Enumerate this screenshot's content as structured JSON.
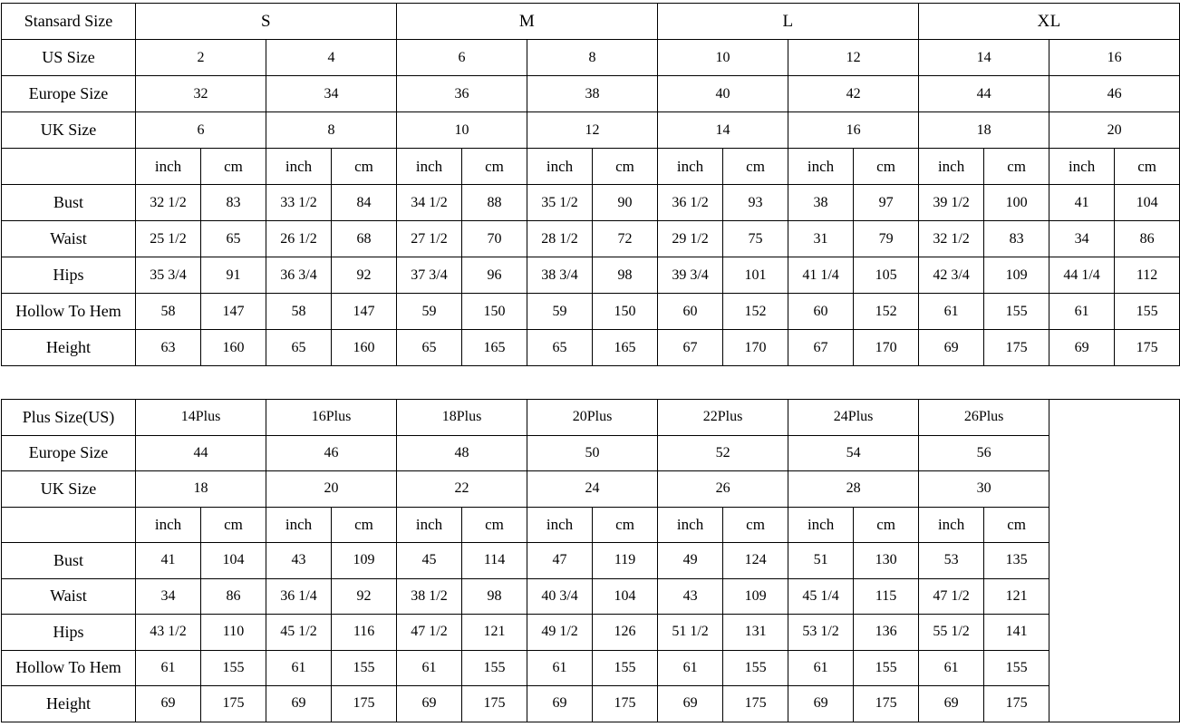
{
  "colors": {
    "background": "#ffffff",
    "border": "#000000",
    "text": "#000000"
  },
  "standard_table": {
    "corner_label": "Stansard Size",
    "size_groups": [
      "S",
      "M",
      "L",
      "XL"
    ],
    "row_labels": {
      "us": "US Size",
      "europe": "Europe Size",
      "uk": "UK Size"
    },
    "unit_labels": {
      "inch": "inch",
      "cm": "cm"
    },
    "us_sizes": [
      "2",
      "4",
      "6",
      "8",
      "10",
      "12",
      "14",
      "16"
    ],
    "europe_sizes": [
      "32",
      "34",
      "36",
      "38",
      "40",
      "42",
      "44",
      "46"
    ],
    "uk_sizes": [
      "6",
      "8",
      "10",
      "12",
      "14",
      "16",
      "18",
      "20"
    ],
    "measurements": [
      {
        "label": "Bust",
        "values": [
          "32 1/2",
          "83",
          "33 1/2",
          "84",
          "34 1/2",
          "88",
          "35 1/2",
          "90",
          "36 1/2",
          "93",
          "38",
          "97",
          "39 1/2",
          "100",
          "41",
          "104"
        ]
      },
      {
        "label": "Waist",
        "values": [
          "25 1/2",
          "65",
          "26 1/2",
          "68",
          "27 1/2",
          "70",
          "28 1/2",
          "72",
          "29 1/2",
          "75",
          "31",
          "79",
          "32 1/2",
          "83",
          "34",
          "86"
        ]
      },
      {
        "label": "Hips",
        "values": [
          "35 3/4",
          "91",
          "36 3/4",
          "92",
          "37 3/4",
          "96",
          "38 3/4",
          "98",
          "39 3/4",
          "101",
          "41 1/4",
          "105",
          "42 3/4",
          "109",
          "44 1/4",
          "112"
        ]
      },
      {
        "label": "Hollow To Hem",
        "values": [
          "58",
          "147",
          "58",
          "147",
          "59",
          "150",
          "59",
          "150",
          "60",
          "152",
          "60",
          "152",
          "61",
          "155",
          "61",
          "155"
        ]
      },
      {
        "label": "Height",
        "values": [
          "63",
          "160",
          "65",
          "160",
          "65",
          "165",
          "65",
          "165",
          "67",
          "170",
          "67",
          "170",
          "69",
          "175",
          "69",
          "175"
        ]
      }
    ]
  },
  "plus_table": {
    "corner_label": "Plus Size(US)",
    "plus_sizes": [
      "14Plus",
      "16Plus",
      "18Plus",
      "20Plus",
      "22Plus",
      "24Plus",
      "26Plus"
    ],
    "row_labels": {
      "europe": "Europe Size",
      "uk": "UK Size"
    },
    "unit_labels": {
      "inch": "inch",
      "cm": "cm"
    },
    "europe_sizes": [
      "44",
      "46",
      "48",
      "50",
      "52",
      "54",
      "56"
    ],
    "uk_sizes": [
      "18",
      "20",
      "22",
      "24",
      "26",
      "28",
      "30"
    ],
    "measurements": [
      {
        "label": "Bust",
        "values": [
          "41",
          "104",
          "43",
          "109",
          "45",
          "114",
          "47",
          "119",
          "49",
          "124",
          "51",
          "130",
          "53",
          "135"
        ]
      },
      {
        "label": "Waist",
        "values": [
          "34",
          "86",
          "36 1/4",
          "92",
          "38 1/2",
          "98",
          "40 3/4",
          "104",
          "43",
          "109",
          "45 1/4",
          "115",
          "47 1/2",
          "121"
        ]
      },
      {
        "label": "Hips",
        "values": [
          "43 1/2",
          "110",
          "45 1/2",
          "116",
          "47 1/2",
          "121",
          "49 1/2",
          "126",
          "51 1/2",
          "131",
          "53 1/2",
          "136",
          "55 1/2",
          "141"
        ]
      },
      {
        "label": "Hollow To Hem",
        "values": [
          "61",
          "155",
          "61",
          "155",
          "61",
          "155",
          "61",
          "155",
          "61",
          "155",
          "61",
          "155",
          "61",
          "155"
        ]
      },
      {
        "label": "Height",
        "values": [
          "69",
          "175",
          "69",
          "175",
          "69",
          "175",
          "69",
          "175",
          "69",
          "175",
          "69",
          "175",
          "69",
          "175"
        ]
      }
    ]
  }
}
